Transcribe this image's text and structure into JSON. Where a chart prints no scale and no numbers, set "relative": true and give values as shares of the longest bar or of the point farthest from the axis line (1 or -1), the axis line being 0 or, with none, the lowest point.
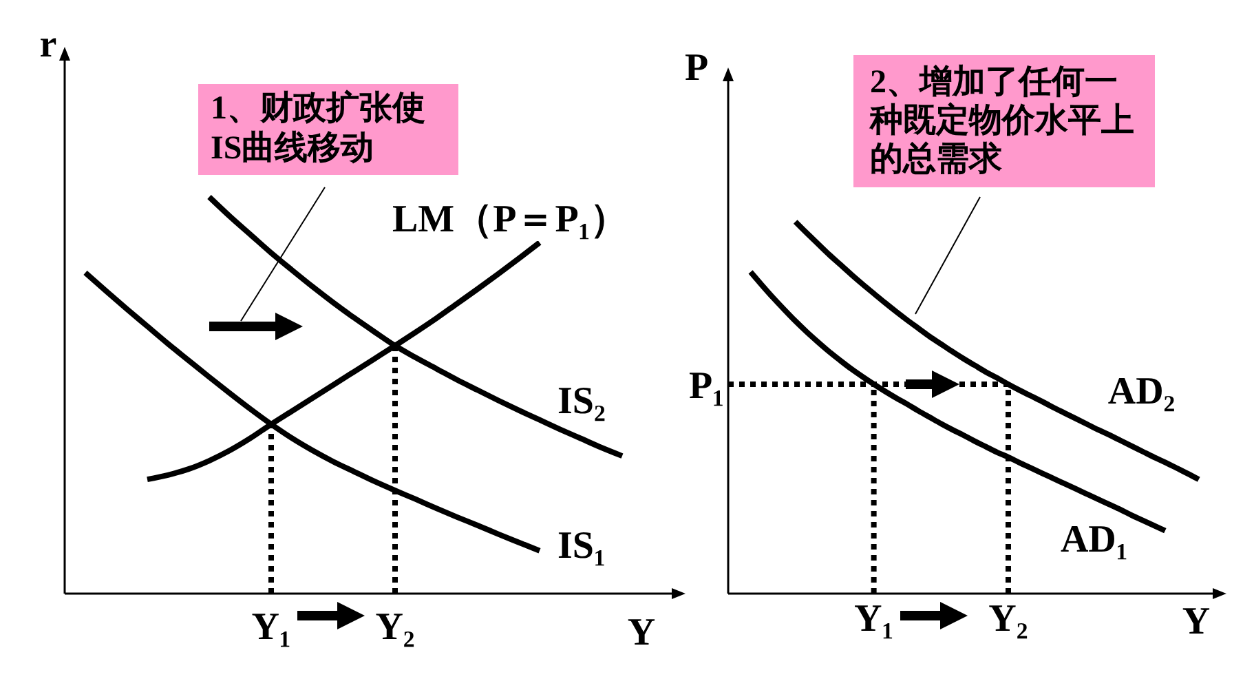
{
  "chart_data": [
    {
      "type": "line",
      "relative": true,
      "ylabel": "r",
      "xlabel": "Y",
      "categories": [
        null,
        null,
        null,
        null,
        null,
        null,
        null,
        null,
        null,
        null,
        "Y₁",
        null,
        null,
        null,
        null,
        null,
        "Y₂",
        null,
        null,
        null,
        null,
        null,
        null,
        null,
        null,
        null,
        null,
        null,
        null,
        null
      ],
      "series": [
        {
          "name": "IS₁",
          "color": "#000000",
          "values": [
            null,
            0.809,
            0.763,
            0.718,
            0.674,
            0.63,
            0.588,
            0.546,
            0.505,
            0.465,
            0.427,
            0.392,
            0.361,
            0.333,
            0.308,
            0.283,
            0.26,
            0.238,
            0.215,
            0.193,
            0.172,
            0.15,
            0.129,
            0.108,
            null,
            null,
            null,
            null,
            null,
            null
          ]
        },
        {
          "name": "IS₂",
          "color": "#000000",
          "values": [
            null,
            null,
            null,
            null,
            null,
            null,
            null,
            1,
            0.951,
            0.905,
            0.859,
            0.816,
            0.774,
            0.734,
            0.696,
            0.66,
            0.625,
            0.595,
            0.567,
            0.539,
            0.513,
            0.487,
            0.462,
            0.438,
            0.414,
            0.391,
            0.368,
            0.347,
            null,
            null
          ]
        },
        {
          "name": "LM（P＝P₁）",
          "color": "#000000",
          "values": [
            null,
            null,
            null,
            null,
            0.288,
            0.299,
            0.314,
            0.335,
            0.361,
            0.392,
            0.427,
            0.46,
            0.493,
            0.526,
            0.559,
            0.592,
            0.625,
            0.659,
            0.694,
            0.731,
            0.768,
            0.806,
            0.845,
            0.885,
            null,
            null,
            null,
            null,
            null,
            null
          ]
        }
      ],
      "ref_lines": [
        {
          "axis": "x",
          "value": "Y₁",
          "line_style": "dotted",
          "color": "#000000"
        },
        {
          "axis": "x",
          "value": "Y₂",
          "line_style": "dotted",
          "color": "#000000"
        }
      ],
      "annotations": [
        "1、财政扩张使IS曲线移动"
      ]
    },
    {
      "type": "line",
      "relative": true,
      "ylabel": "P",
      "xlabel": "Y",
      "categories": [
        null,
        null,
        null,
        null,
        null,
        null,
        null,
        null,
        null,
        null,
        null,
        null,
        null,
        "Y₁",
        null,
        null,
        null,
        null,
        null,
        null,
        null,
        null,
        null,
        null,
        null,
        "Y₂",
        null,
        null,
        null,
        null,
        null,
        null,
        null,
        null,
        null,
        null,
        null,
        null,
        null,
        null,
        null,
        null,
        null,
        null
      ],
      "series": [
        {
          "name": "AD₁",
          "color": "#000000",
          "values": [
            null,
            null,
            0.865,
            0.83,
            0.796,
            0.764,
            0.733,
            0.704,
            0.677,
            0.651,
            0.627,
            0.604,
            0.583,
            0.563,
            0.544,
            0.526,
            0.509,
            0.491,
            0.474,
            0.457,
            0.441,
            0.426,
            0.41,
            0.395,
            0.38,
            0.367,
            0.352,
            0.338,
            0.324,
            0.31,
            0.296,
            0.282,
            0.268,
            0.254,
            0.24,
            0.226,
            0.211,
            0.197,
            0.183,
            0.169,
            null,
            null,
            null,
            null
          ]
        },
        {
          "name": "AD₂",
          "color": "#000000",
          "values": [
            null,
            null,
            null,
            null,
            null,
            null,
            1,
            0.97,
            0.941,
            0.912,
            0.885,
            0.858,
            0.832,
            0.807,
            0.782,
            0.758,
            0.735,
            0.713,
            0.691,
            0.671,
            0.651,
            0.632,
            0.614,
            0.596,
            0.58,
            0.563,
            0.547,
            0.532,
            0.517,
            0.501,
            0.486,
            0.471,
            0.456,
            0.441,
            0.427,
            0.412,
            0.397,
            0.382,
            0.367,
            0.353,
            0.338,
            0.323,
            0.307,
            null
          ]
        }
      ],
      "ref_lines": [
        {
          "axis": "y",
          "value": 0.563,
          "label": "P₁",
          "line_style": "dotted",
          "color": "#000000"
        },
        {
          "axis": "x",
          "value": "Y₁",
          "line_style": "dotted",
          "color": "#000000"
        },
        {
          "axis": "x",
          "value": "Y₂",
          "line_style": "dotted",
          "color": "#000000"
        }
      ],
      "annotations": [
        "2、增加了任何一种既定物价水平上的总需求"
      ]
    }
  ]
}
